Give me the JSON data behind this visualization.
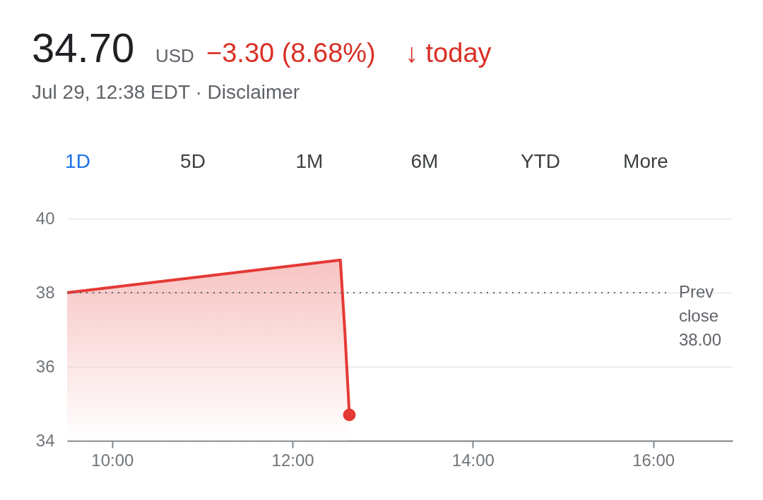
{
  "chart_data": {
    "type": "area",
    "title": "34.70",
    "annotations": [
      "USD",
      "−3.30 (8.68%)",
      "↓ today",
      "Jul 29, 12:38 EDT · Disclaimer",
      "1D",
      "5D",
      "1M",
      "6M",
      "YTD",
      "More"
    ],
    "series": [
      {
        "color": "#e53935",
        "x": [
          9.5,
          12.53,
          12.58,
          12.63
        ],
        "values": [
          38.0,
          38.88,
          36.95,
          34.7
        ]
      },
      {
        "type": "scatter",
        "marker": "circle",
        "color": "#e53935",
        "x": [
          12.63
        ],
        "values": [
          34.7
        ]
      }
    ],
    "xlim": [
      9.5,
      16.88
    ],
    "xticks": [
      {
        "value": 10,
        "label": "10:00"
      },
      {
        "value": 12,
        "label": "12:00"
      },
      {
        "value": 14,
        "label": "14:00"
      },
      {
        "value": 16,
        "label": "16:00"
      }
    ],
    "ylim": [
      34,
      40
    ],
    "yticks": [
      34,
      36,
      38,
      40
    ],
    "ref_lines": [
      {
        "axis": "y",
        "value": 38,
        "label": "Prev close 38.00",
        "line_style": "dotted",
        "color": "#5f6368"
      }
    ],
    "grid": "y",
    "line_style": "solid"
  }
}
